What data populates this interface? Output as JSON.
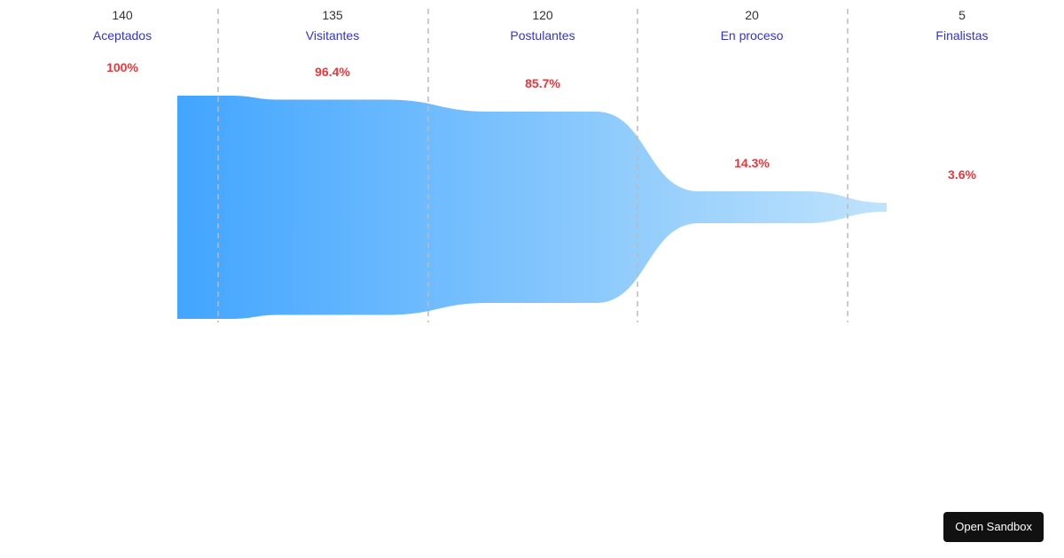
{
  "chart_data": {
    "type": "funnel",
    "categories": [
      "Aceptados",
      "Visitantes",
      "Postulantes",
      "En proceso",
      "Finalistas"
    ],
    "values": [
      140,
      135,
      120,
      20,
      5
    ],
    "percent_labels": [
      "100%",
      "96.4%",
      "85.7%",
      "14.3%",
      "3.6%"
    ],
    "colors": {
      "value_text": "#333333",
      "category_text": "#3333cc",
      "percent_text": "#e8383d",
      "funnel_start": "#42a5ff",
      "funnel_end": "#bfe3fb",
      "divider": "#bbbbbb"
    }
  },
  "sandbox_button": {
    "label": "Open Sandbox"
  }
}
